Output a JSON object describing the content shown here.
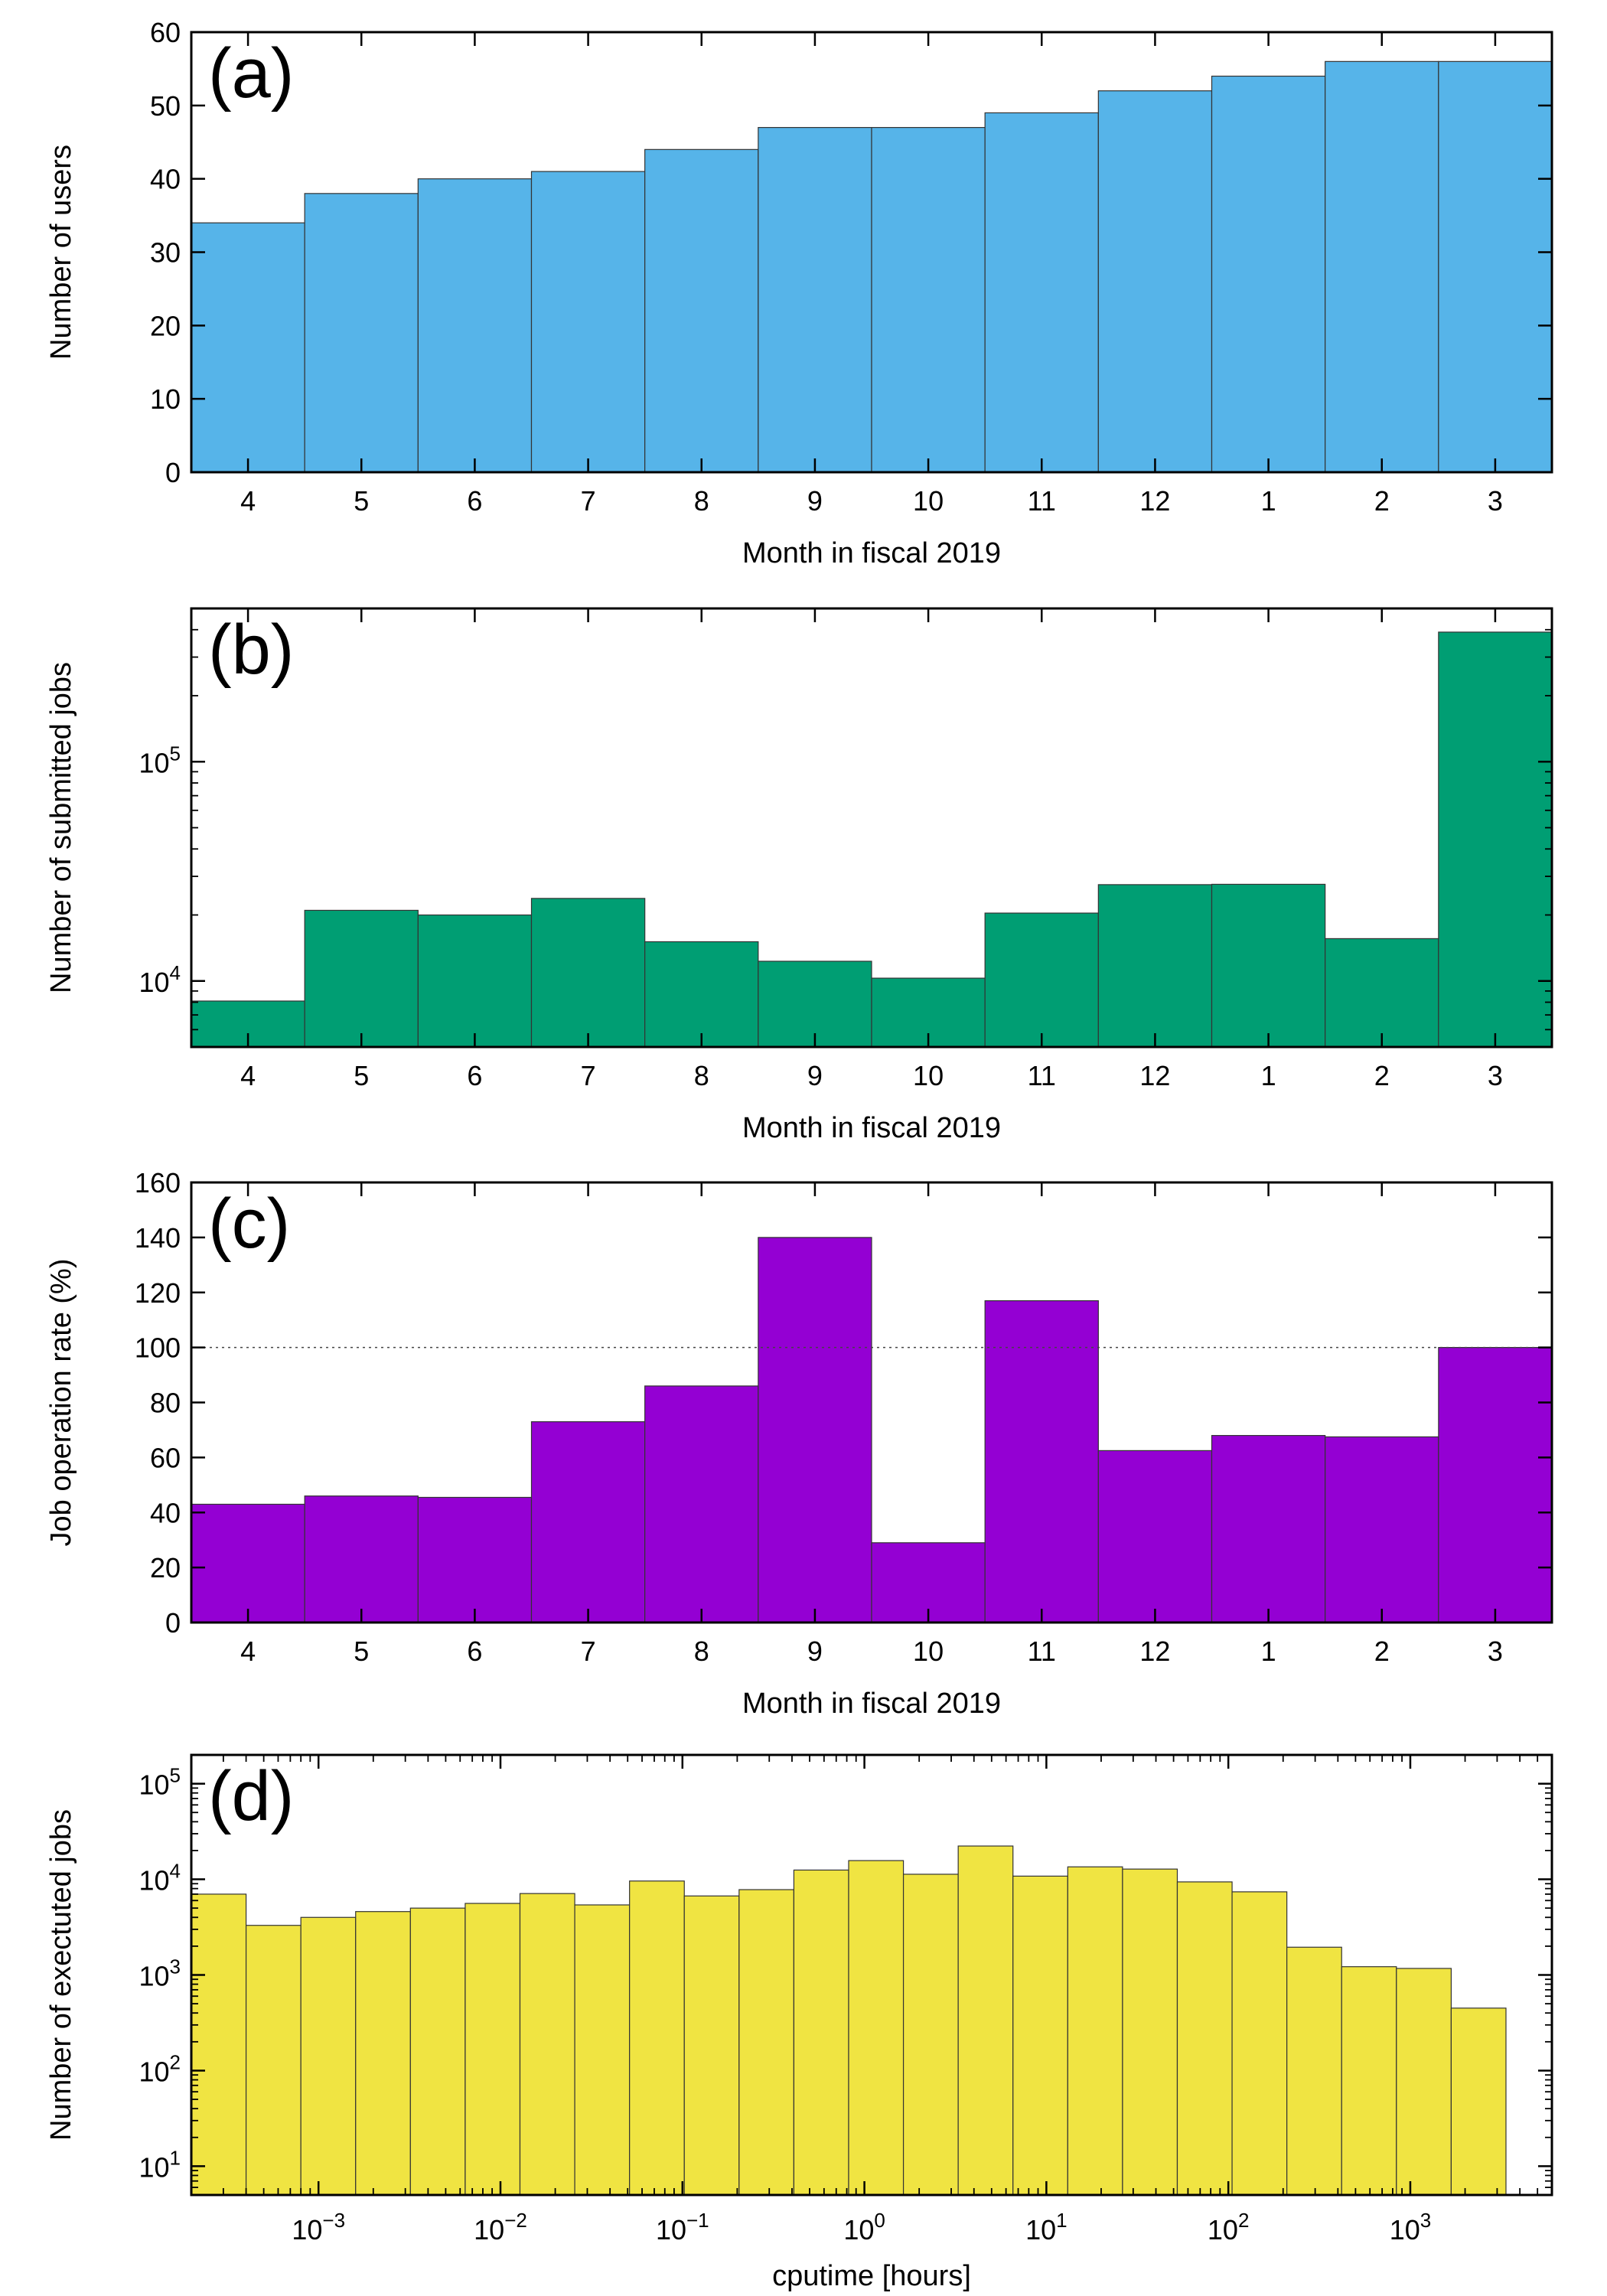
{
  "chart_data": [
    {
      "type": "bar",
      "panel_label": "(a)",
      "xlabel": "Month in fiscal 2019",
      "ylabel": "Number of users",
      "categories": [
        "4",
        "5",
        "6",
        "7",
        "8",
        "9",
        "10",
        "11",
        "12",
        "1",
        "2",
        "3"
      ],
      "values": [
        34,
        38,
        40,
        41,
        44,
        47,
        47,
        49,
        52,
        54,
        56,
        56
      ],
      "ylim": [
        0,
        60
      ],
      "yticks": [
        0,
        10,
        20,
        30,
        40,
        50,
        60
      ],
      "ytick_labels": [
        "0",
        "10",
        "20",
        "30",
        "40",
        "50",
        "60"
      ],
      "yscale": "linear",
      "color": "#56b4e9",
      "grid": false
    },
    {
      "type": "bar",
      "panel_label": "(b)",
      "xlabel": "Month in fiscal 2019",
      "ylabel": "Number of submitted jobs",
      "categories": [
        "4",
        "5",
        "6",
        "7",
        "8",
        "9",
        "10",
        "11",
        "12",
        "1",
        "2",
        "3"
      ],
      "values": [
        8100,
        21000,
        20000,
        23800,
        15100,
        12300,
        10300,
        20400,
        27500,
        27600,
        15600,
        390000
      ],
      "ylim": [
        5000,
        500000
      ],
      "yticks": [
        10000,
        100000
      ],
      "ytick_labels": [
        {
          "base": "10",
          "exp": "4"
        },
        {
          "base": "10",
          "exp": "5"
        }
      ],
      "yscale": "log",
      "color": "#009e73",
      "grid": false
    },
    {
      "type": "bar",
      "panel_label": "(c)",
      "xlabel": "Month in fiscal 2019",
      "ylabel": "Job operation rate (%)",
      "categories": [
        "4",
        "5",
        "6",
        "7",
        "8",
        "9",
        "10",
        "11",
        "12",
        "1",
        "2",
        "3"
      ],
      "values": [
        43,
        46,
        45.5,
        73,
        86,
        140,
        29,
        117,
        62.5,
        68,
        67.5,
        100
      ],
      "ylim": [
        0,
        160
      ],
      "yticks": [
        0,
        20,
        40,
        60,
        80,
        100,
        120,
        140,
        160
      ],
      "ytick_labels": [
        "0",
        "20",
        "40",
        "60",
        "80",
        "100",
        "120",
        "140",
        "160"
      ],
      "yscale": "linear",
      "reference_line": 100,
      "color": "#9400d3",
      "grid": false
    },
    {
      "type": "bar",
      "panel_label": "(d)",
      "xlabel": "cputime [hours]",
      "ylabel": "Number of exectuted jobs",
      "xscale": "log",
      "yscale": "log",
      "xlim": [
        0.0002,
        6000
      ],
      "ylim": [
        5,
        200000
      ],
      "xticks": [
        0.001,
        0.01,
        0.1,
        1,
        10,
        100,
        1000
      ],
      "xtick_labels": [
        {
          "base": "10",
          "exp": "−3"
        },
        {
          "base": "10",
          "exp": "−2"
        },
        {
          "base": "10",
          "exp": "−1"
        },
        {
          "base": "10",
          "exp": "0"
        },
        {
          "base": "10",
          "exp": "1"
        },
        {
          "base": "10",
          "exp": "2"
        },
        {
          "base": "10",
          "exp": "3"
        }
      ],
      "yticks": [
        10,
        100,
        1000,
        10000,
        100000
      ],
      "ytick_labels": [
        {
          "base": "10",
          "exp": "1"
        },
        {
          "base": "10",
          "exp": "2"
        },
        {
          "base": "10",
          "exp": "3"
        },
        {
          "base": "10",
          "exp": "4"
        },
        {
          "base": "10",
          "exp": "5"
        }
      ],
      "bin_edges": [
        0.0002,
        0.0004,
        0.0008,
        0.0016,
        0.0032,
        0.0064,
        0.0128,
        0.0256,
        0.0512,
        0.1024,
        0.2048,
        0.4096,
        0.8192,
        1.6384,
        3.2768,
        6.5536,
        13.1072,
        26.2144,
        52.4288,
        104.8576,
        209.7152,
        419.4304,
        838.8608,
        1677.7216,
        3355.4432
      ],
      "values": [
        7000,
        3300,
        4000,
        4600,
        5000,
        5600,
        7100,
        5400,
        9600,
        6700,
        7800,
        12500,
        15700,
        11300,
        22300,
        10800,
        13500,
        12800,
        9400,
        7400,
        1950,
        1220,
        1170,
        450
      ],
      "color": "#f0e442",
      "grid": false
    }
  ]
}
